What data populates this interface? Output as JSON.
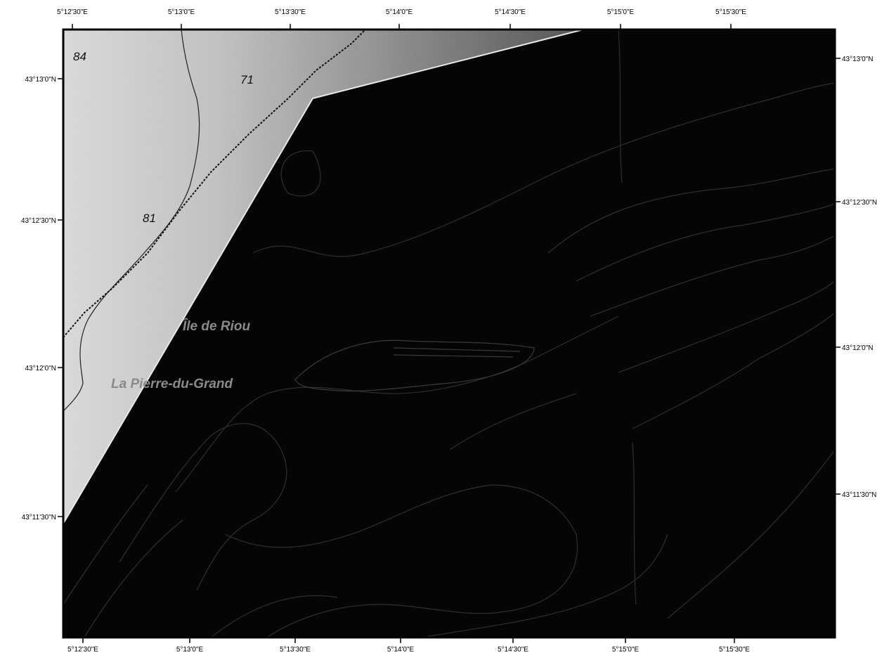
{
  "axes": {
    "top": [
      "5°12'30\"E",
      "5°13'0\"E",
      "5°13'30\"E",
      "5°14'0\"E",
      "5°14'30\"E",
      "5°15'0\"E",
      "5°15'30\"E"
    ],
    "bottom": [
      "5°12'30\"E",
      "5°13'0\"E",
      "5°13'30\"E",
      "5°14'0\"E",
      "5°14'30\"E",
      "5°15'0\"E",
      "5°15'30\"E"
    ],
    "left": [
      "43°13'0\"N",
      "43°12'30\"N",
      "43°12'0\"N",
      "43°11'30\"N"
    ],
    "right": [
      "43°13'0\"N",
      "43°12'30\"N",
      "43°12'0\"N",
      "43°11'30\"N"
    ]
  },
  "depth_labels": [
    "84",
    "71",
    "81"
  ],
  "place_labels": [
    "Île de Riou",
    "La Pierre-du-Grand"
  ],
  "colors": {
    "sea": "#050505",
    "land_light": "#d8d8d8",
    "land_dark": "#6a6a6a",
    "contour": "#2e2e2e",
    "frame": "#000000"
  }
}
